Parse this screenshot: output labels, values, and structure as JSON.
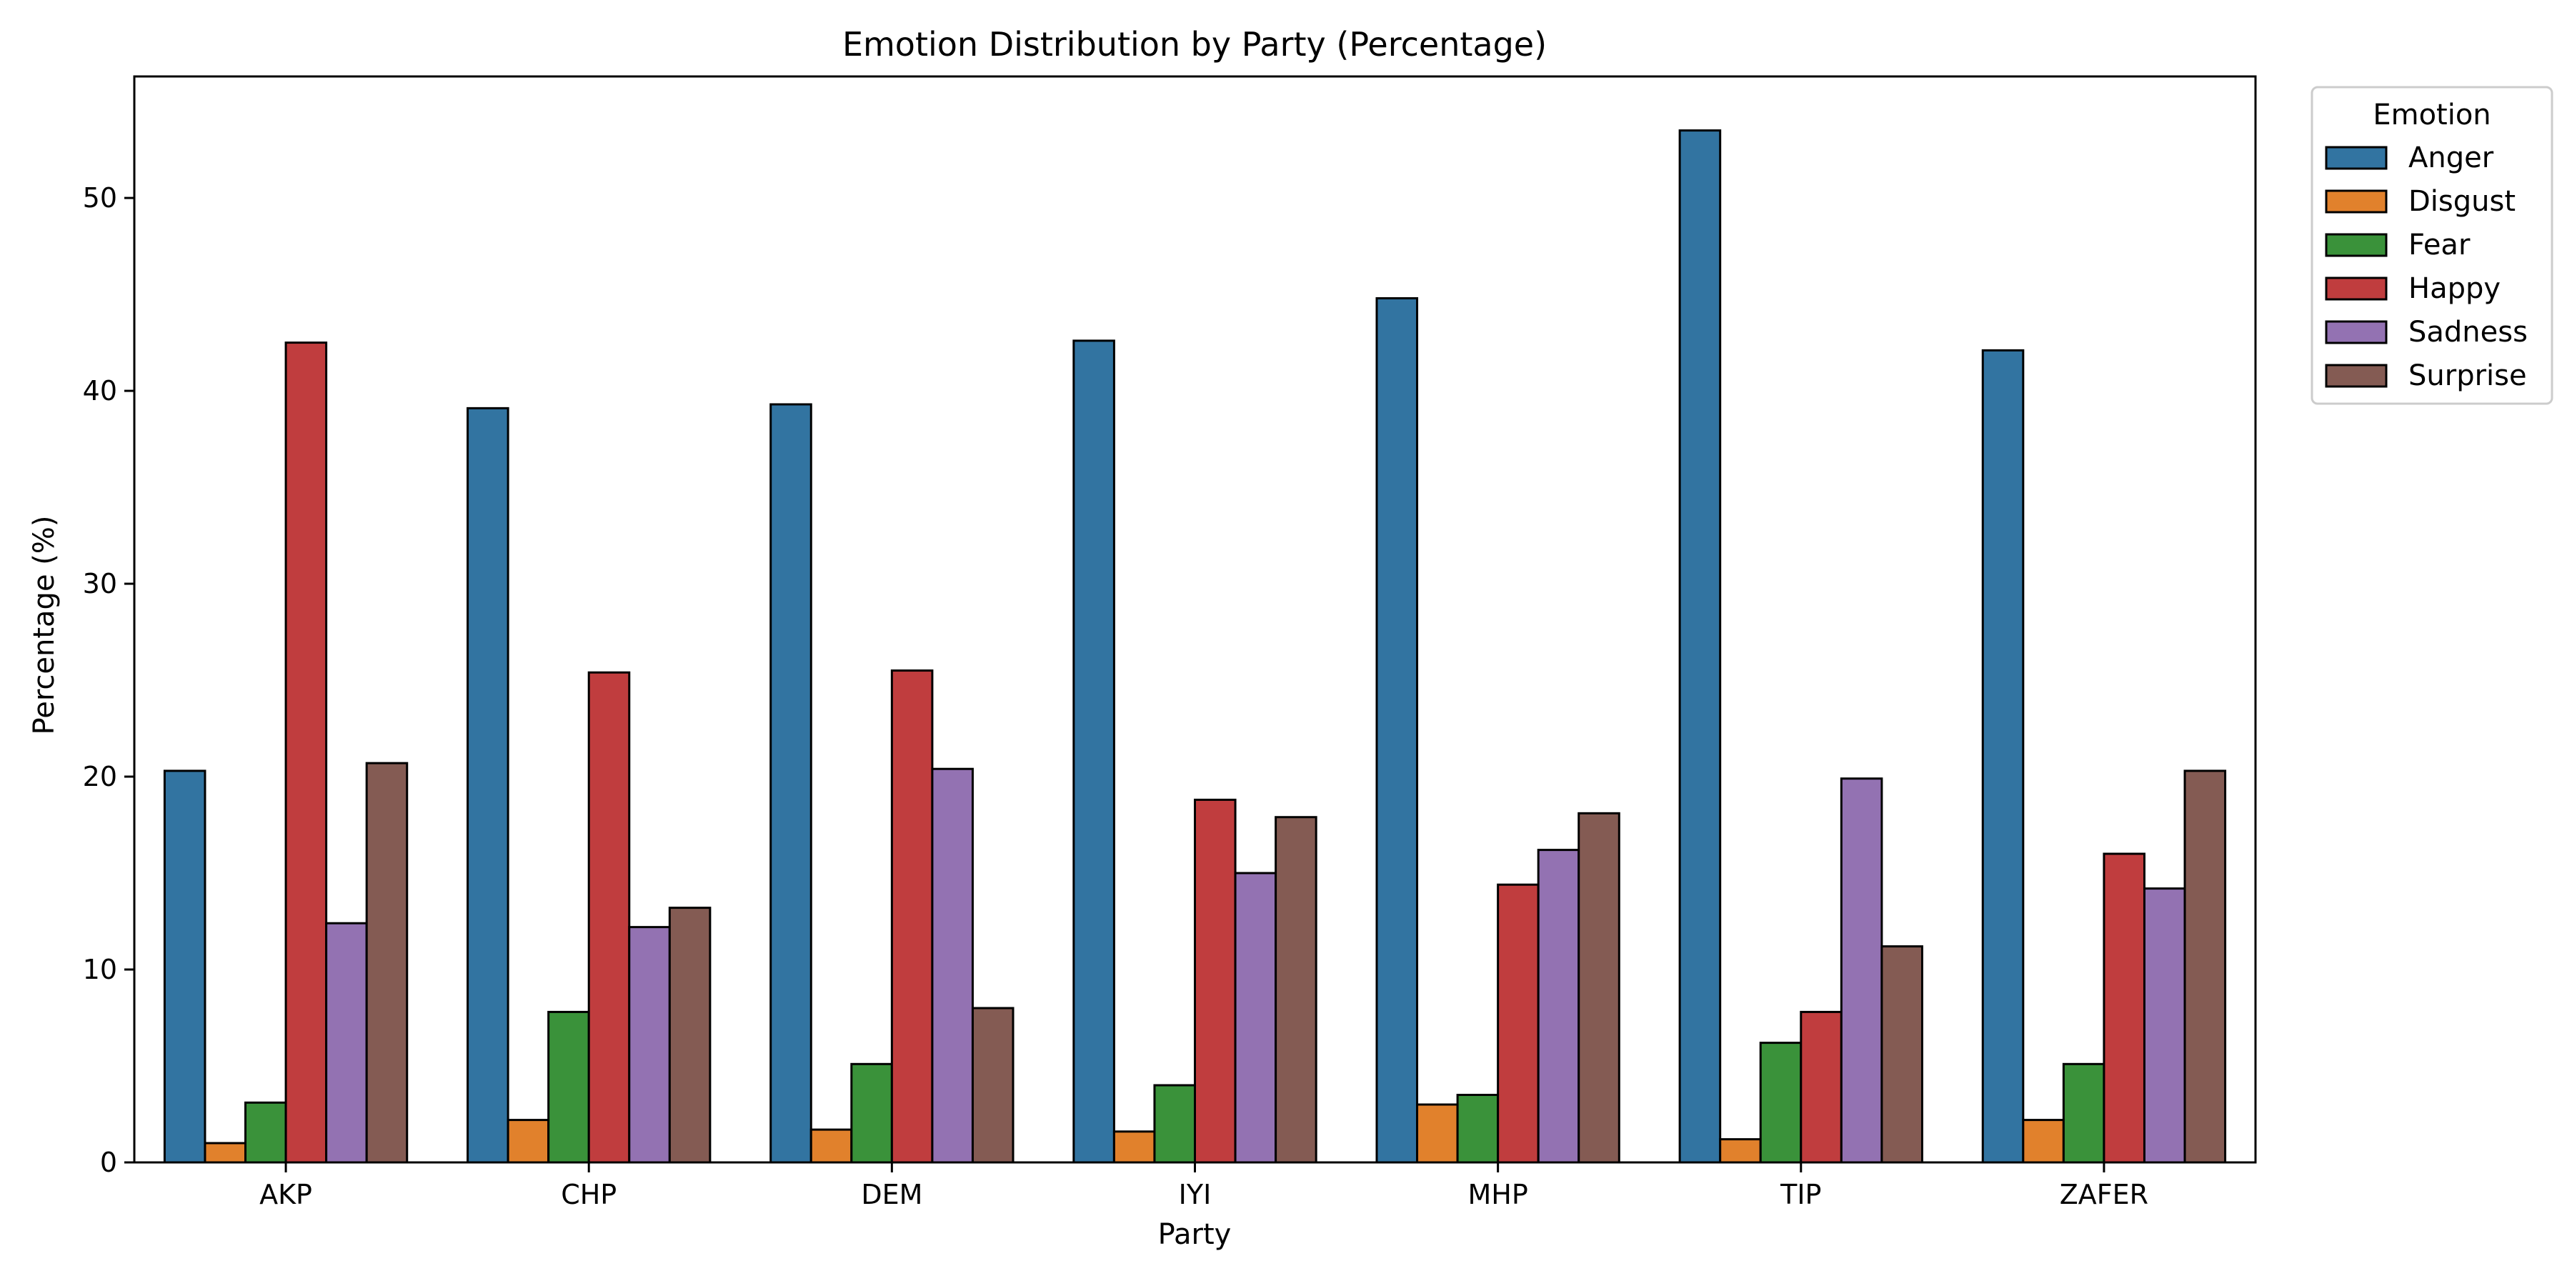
{
  "chart_data": {
    "type": "bar",
    "title": "Emotion Distribution by Party (Percentage)",
    "xlabel": "Party",
    "ylabel": "Percentage (%)",
    "ylim": [
      0,
      56.3
    ],
    "yticks": [
      0,
      10,
      20,
      30,
      40,
      50
    ],
    "categories": [
      "AKP",
      "CHP",
      "DEM",
      "IYI",
      "MHP",
      "TIP",
      "ZAFER"
    ],
    "legend": {
      "title": "Emotion",
      "placement": "upper-right-outside"
    },
    "series": [
      {
        "name": "Anger",
        "color": "#3274a1",
        "values": [
          20.3,
          39.1,
          39.3,
          42.6,
          44.8,
          53.5,
          42.1
        ]
      },
      {
        "name": "Disgust",
        "color": "#e1812c",
        "values": [
          1.0,
          2.2,
          1.7,
          1.6,
          3.0,
          1.2,
          2.2
        ]
      },
      {
        "name": "Fear",
        "color": "#3a923a",
        "values": [
          3.1,
          7.8,
          5.1,
          4.0,
          3.5,
          6.2,
          5.1
        ]
      },
      {
        "name": "Happy",
        "color": "#c03d3e",
        "values": [
          42.5,
          25.4,
          25.5,
          18.8,
          14.4,
          7.8,
          16.0
        ]
      },
      {
        "name": "Sadness",
        "color": "#9372b2",
        "values": [
          12.4,
          12.2,
          20.4,
          15.0,
          16.2,
          19.9,
          14.2
        ]
      },
      {
        "name": "Surprise",
        "color": "#845b53",
        "values": [
          20.7,
          13.2,
          8.0,
          17.9,
          18.1,
          11.2,
          20.3
        ]
      }
    ],
    "grid": false
  }
}
